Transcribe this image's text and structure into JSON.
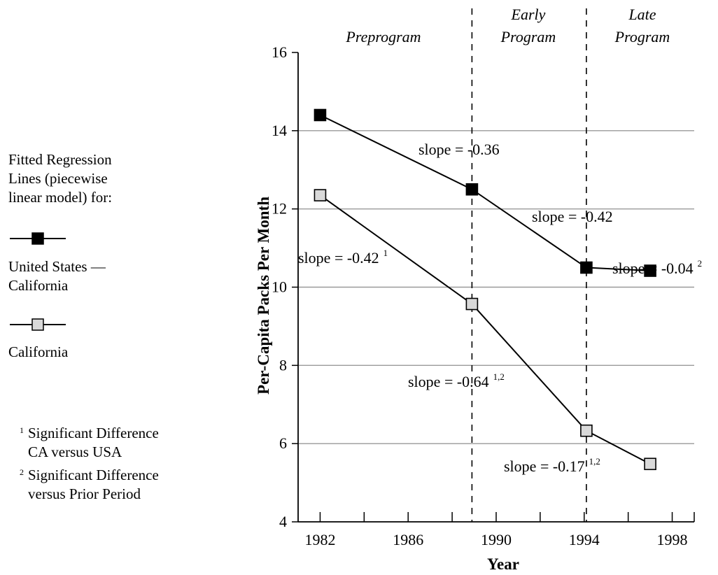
{
  "chart_data": {
    "type": "line",
    "xlabel": "Year",
    "ylabel": "Per-Capita Packs Per Month",
    "xlim": [
      1981,
      1999
    ],
    "ylim": [
      4,
      16
    ],
    "x_ticks": [
      1982,
      1986,
      1990,
      1994,
      1998
    ],
    "y_ticks": [
      4,
      6,
      8,
      10,
      12,
      14,
      16
    ],
    "grid": "horizontal",
    "periods": [
      {
        "label": "Preprogram"
      },
      {
        "label": "Early Program"
      },
      {
        "label": "Late Program"
      }
    ],
    "period_boundaries": [
      1988.9,
      1994.1
    ],
    "series": [
      {
        "name": "United States — California",
        "marker": "filled-square",
        "color": "#000000",
        "x": [
          1982,
          1988.9,
          1994.1,
          1997
        ],
        "y": [
          14.4,
          12.5,
          10.5,
          10.42
        ]
      },
      {
        "name": "California",
        "marker": "open-square",
        "color": "#d9d9d9",
        "x": [
          1982,
          1988.9,
          1994.1,
          1997
        ],
        "y": [
          12.35,
          9.57,
          6.33,
          5.48
        ]
      }
    ],
    "annotations": [
      {
        "text": "slope = -0.36",
        "sup": ""
      },
      {
        "text": "slope = -0.42",
        "sup": ""
      },
      {
        "text": "slope = -0.04",
        "sup": "2"
      },
      {
        "text": "slope = -0.42",
        "sup": "1"
      },
      {
        "text": "slope = -0.64",
        "sup": "1,2"
      },
      {
        "text": "slope = -0.17",
        "sup": "1,2"
      }
    ]
  },
  "legend": {
    "title_lines": [
      "Fitted Regression",
      "Lines (piecewise",
      "linear model) for:"
    ],
    "us_label_lines": [
      "United States —",
      "California"
    ],
    "ca_label": "California"
  },
  "footnotes": [
    {
      "mark": "1",
      "lines": [
        "Significant Difference",
        "CA versus USA"
      ]
    },
    {
      "mark": "2",
      "lines": [
        "Significant Difference",
        "versus Prior Period"
      ]
    }
  ]
}
